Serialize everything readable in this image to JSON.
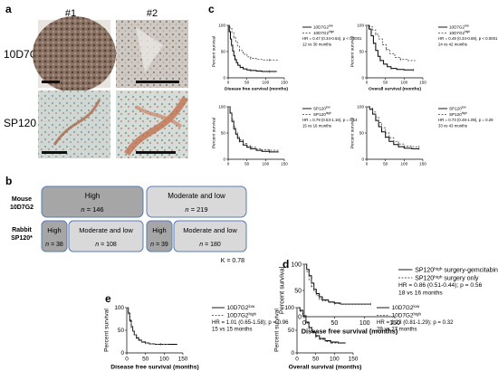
{
  "panel_a": {
    "label": "a",
    "columns": [
      "#1",
      "#2"
    ],
    "rows": [
      "10D7G2",
      "SP120"
    ]
  },
  "panel_b": {
    "label": "b",
    "row1": {
      "label_lines": [
        "Mouse",
        "10D7G2"
      ],
      "boxes": [
        {
          "title": "High",
          "n_prefix": "n = ",
          "n": "146"
        },
        {
          "title": "Moderate and low",
          "n_prefix": "n = ",
          "n": "219"
        }
      ]
    },
    "row2": {
      "label_lines": [
        "Rabbit",
        "SP120*"
      ],
      "boxes": [
        {
          "title": "High",
          "n_prefix": "n = ",
          "n": "38"
        },
        {
          "title": "Moderate and low",
          "n_prefix": "n = ",
          "n": "108"
        },
        {
          "title": "High",
          "n_prefix": "n = ",
          "n": "39"
        },
        {
          "title": "Moderate and low",
          "n_prefix": "n = ",
          "n": "180"
        }
      ]
    },
    "kappa": "K = 0.78"
  },
  "chart_data": [
    {
      "id": "c1",
      "panel": "c",
      "type": "line",
      "xlabel": "Disease free survival (months)",
      "ylabel": "Percent survival",
      "xlim": [
        0,
        150
      ],
      "ylim": [
        0,
        100
      ],
      "xticks": [
        0,
        50,
        100,
        150
      ],
      "yticks": [
        0,
        50,
        100
      ],
      "legend": [
        "10D7G2low",
        "10D7G2high"
      ],
      "annotation": [
        "HR = 0.47 (0.34-0.64), p < 0.0001",
        "12 vs 30 months"
      ],
      "series": [
        {
          "name": "10D7G2low",
          "style": "solid",
          "x": [
            0,
            3,
            6,
            9,
            12,
            15,
            18,
            22,
            26,
            32,
            40,
            50,
            60,
            75,
            90,
            110,
            130
          ],
          "y": [
            100,
            88,
            74,
            62,
            51,
            42,
            35,
            29,
            24,
            20,
            17,
            15,
            14,
            13,
            12,
            12,
            12
          ]
        },
        {
          "name": "10D7G2high",
          "style": "dashed",
          "x": [
            0,
            5,
            10,
            15,
            20,
            25,
            30,
            40,
            50,
            60,
            75,
            90,
            110,
            135
          ],
          "y": [
            100,
            94,
            86,
            77,
            68,
            60,
            52,
            45,
            40,
            37,
            35,
            34,
            34,
            34
          ]
        }
      ]
    },
    {
      "id": "c2",
      "panel": "c",
      "type": "line",
      "xlabel": "Overall survival (months)",
      "ylabel": "Percent survival",
      "xlim": [
        0,
        150
      ],
      "ylim": [
        0,
        100
      ],
      "xticks": [
        0,
        50,
        100,
        150
      ],
      "yticks": [
        0,
        50,
        100
      ],
      "legend": [
        "10D7G2low",
        "10D7G2high"
      ],
      "annotation": [
        "HR = 0.49 (0.34-0.69), p < 0.0001",
        "24 vs 42 months"
      ],
      "series": [
        {
          "name": "10D7G2low",
          "style": "solid",
          "x": [
            0,
            6,
            12,
            18,
            24,
            30,
            36,
            45,
            55,
            65,
            80,
            100,
            125
          ],
          "y": [
            100,
            93,
            80,
            66,
            52,
            41,
            33,
            26,
            21,
            18,
            16,
            15,
            15
          ]
        },
        {
          "name": "10D7G2high",
          "style": "dashed",
          "x": [
            0,
            8,
            16,
            24,
            32,
            42,
            52,
            62,
            75,
            90,
            110,
            130
          ],
          "y": [
            100,
            97,
            91,
            83,
            74,
            63,
            54,
            46,
            39,
            35,
            33,
            33
          ]
        }
      ]
    },
    {
      "id": "c3",
      "panel": "c",
      "type": "line",
      "xlabel": "",
      "ylabel": "Percent survival",
      "xlim": [
        0,
        150
      ],
      "ylim": [
        0,
        100
      ],
      "xticks": [
        0,
        50,
        100,
        150
      ],
      "yticks": [
        0,
        50,
        100
      ],
      "legend": [
        "SP120low",
        "SP120high"
      ],
      "annotation": [
        "HR = 0.79 (0.53-1.16), p = 0.14",
        "15 vs 16 months"
      ],
      "series": [
        {
          "name": "SP120low",
          "style": "solid",
          "x": [
            0,
            5,
            10,
            15,
            20,
            25,
            30,
            40,
            50,
            60,
            75,
            90,
            110,
            135
          ],
          "y": [
            100,
            88,
            72,
            58,
            48,
            40,
            34,
            27,
            23,
            20,
            17,
            15,
            14,
            14
          ]
        },
        {
          "name": "SP120high",
          "style": "dashed",
          "x": [
            0,
            5,
            10,
            15,
            20,
            25,
            30,
            40,
            50,
            60,
            75,
            90,
            110,
            135
          ],
          "y": [
            100,
            90,
            76,
            62,
            52,
            44,
            37,
            30,
            26,
            23,
            20,
            18,
            17,
            17
          ]
        }
      ]
    },
    {
      "id": "c4",
      "panel": "c",
      "type": "line",
      "xlabel": "",
      "ylabel": "Percent survival",
      "xlim": [
        0,
        150
      ],
      "ylim": [
        0,
        100
      ],
      "xticks": [
        0,
        50,
        100,
        150
      ],
      "yticks": [
        0,
        50,
        100
      ],
      "legend": [
        "SP120low",
        "SP120high"
      ],
      "annotation": [
        "HR = 0.73 (0.49-1.09), p = 0.29",
        "33 vs 43 months"
      ],
      "series": [
        {
          "name": "SP120low",
          "style": "solid",
          "x": [
            0,
            8,
            16,
            24,
            32,
            40,
            50,
            60,
            72,
            85,
            100,
            120,
            140
          ],
          "y": [
            100,
            95,
            86,
            74,
            62,
            52,
            42,
            34,
            28,
            24,
            21,
            20,
            20
          ]
        },
        {
          "name": "SP120high",
          "style": "dashed",
          "x": [
            0,
            8,
            16,
            24,
            32,
            40,
            50,
            60,
            72,
            85,
            100,
            120,
            140
          ],
          "y": [
            100,
            97,
            90,
            80,
            70,
            60,
            50,
            41,
            34,
            29,
            25,
            24,
            24
          ]
        }
      ]
    },
    {
      "id": "d1",
      "panel": "d",
      "type": "line",
      "xlabel": "Disease free survival (months)",
      "ylabel": "Percent survival",
      "xlim": [
        0,
        150
      ],
      "ylim": [
        0,
        100
      ],
      "xticks": [
        0,
        50,
        100,
        150
      ],
      "yticks": [
        0,
        50,
        100
      ],
      "legend": [
        "SP120high surgery-gemcitabine",
        "SP120high surgery only"
      ],
      "annotation": [
        "HR = 0.86 (0.51-0.44); p = 0.56",
        "18 vs 16 months"
      ],
      "series": [
        {
          "name": "SP120high surgery-gemcitabine",
          "style": "solid",
          "x": [
            0,
            4,
            8,
            12,
            16,
            20,
            25,
            30,
            40,
            50,
            60,
            80,
            110
          ],
          "y": [
            100,
            90,
            78,
            64,
            52,
            44,
            38,
            32,
            28,
            26,
            24,
            24,
            24
          ]
        },
        {
          "name": "SP120high surgery only",
          "style": "dashed",
          "x": [
            0,
            4,
            8,
            12,
            16,
            20,
            25,
            30,
            40,
            50,
            60,
            80,
            110
          ],
          "y": [
            100,
            86,
            70,
            58,
            48,
            40,
            34,
            30,
            27,
            25,
            24,
            24,
            24
          ]
        }
      ]
    },
    {
      "id": "e1",
      "panel": "e",
      "type": "line",
      "xlabel": "Disease free survival (months)",
      "ylabel": "Percent survival",
      "xlim": [
        0,
        150
      ],
      "ylim": [
        0,
        100
      ],
      "xticks": [
        0,
        50,
        100,
        150
      ],
      "yticks": [
        0,
        50,
        100
      ],
      "legend": [
        "10D7G2low",
        "10D7G2high"
      ],
      "annotation": [
        "HR = 1.01 (0.65-1.58); p = 0.96",
        "15 vs 15 months"
      ],
      "series": [
        {
          "name": "10D7G2low",
          "style": "solid",
          "x": [
            0,
            4,
            8,
            12,
            16,
            20,
            26,
            32,
            40,
            50,
            60,
            75,
            90,
            110,
            135
          ],
          "y": [
            100,
            88,
            72,
            58,
            48,
            40,
            33,
            28,
            24,
            22,
            20,
            19,
            19,
            19,
            19
          ]
        },
        {
          "name": "10D7G2high",
          "style": "dashed",
          "x": [
            0,
            4,
            8,
            12,
            16,
            20,
            26,
            32,
            40,
            50,
            60,
            75,
            90,
            110
          ],
          "y": [
            100,
            86,
            70,
            57,
            48,
            40,
            34,
            29,
            25,
            22,
            20,
            19,
            19,
            19
          ]
        }
      ]
    },
    {
      "id": "e2",
      "panel": "e",
      "type": "line",
      "xlabel": "Overall survival (months)",
      "ylabel": "Percent survival",
      "xlim": [
        0,
        150
      ],
      "ylim": [
        0,
        100
      ],
      "xticks": [
        0,
        50,
        100,
        150
      ],
      "yticks": [
        0,
        50,
        100
      ],
      "legend": [
        "10D7G2low",
        "10D7G2high"
      ],
      "annotation": [
        "HR = 1.23 (0.81-1.29); p = 0.32",
        "29 vs 27 months"
      ],
      "series": [
        {
          "name": "10D7G2low",
          "style": "solid",
          "x": [
            0,
            8,
            16,
            24,
            32,
            40,
            50,
            60,
            75,
            90,
            110,
            130
          ],
          "y": [
            100,
            94,
            82,
            68,
            56,
            46,
            38,
            32,
            27,
            24,
            22,
            22
          ]
        },
        {
          "name": "10D7G2high",
          "style": "dashed",
          "x": [
            0,
            8,
            16,
            24,
            32,
            40,
            50,
            60,
            75,
            90,
            110
          ],
          "y": [
            100,
            92,
            80,
            66,
            54,
            44,
            36,
            30,
            25,
            22,
            20
          ]
        }
      ]
    }
  ]
}
